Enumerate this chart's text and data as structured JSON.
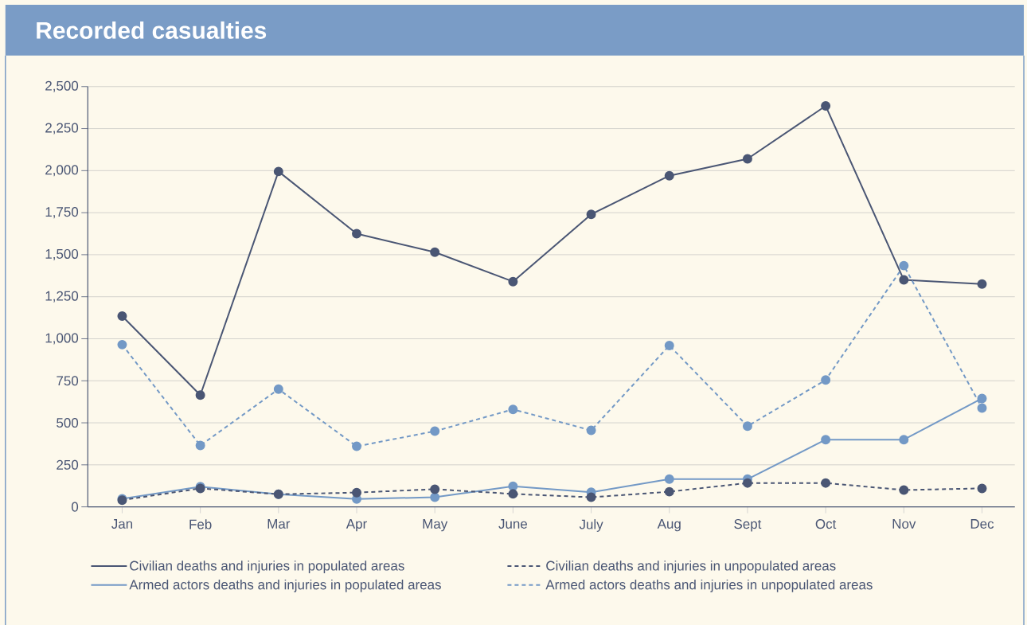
{
  "chart_data": {
    "type": "line",
    "title": "Recorded casualties",
    "categories": [
      "Jan",
      "Feb",
      "Mar",
      "Apr",
      "May",
      "June",
      "July",
      "Aug",
      "Sept",
      "Oct",
      "Nov",
      "Dec"
    ],
    "series": [
      {
        "name": "Civilian deaths and injuries in populated areas",
        "color": "#4a5674",
        "line_style": "solid",
        "values": [
          1135,
          665,
          1995,
          1625,
          1515,
          1340,
          1740,
          1970,
          2070,
          2385,
          1350,
          1325
        ]
      },
      {
        "name": "Civilian deaths and injuries in unpopulated areas",
        "color": "#4a5674",
        "line_style": "dashed",
        "values": [
          40,
          110,
          75,
          85,
          105,
          77,
          57,
          90,
          142,
          142,
          100,
          110
        ]
      },
      {
        "name": "Armed actors deaths and injuries in populated areas",
        "color": "#7399c6",
        "line_style": "solid",
        "values": [
          48,
          120,
          75,
          47,
          57,
          123,
          87,
          165,
          165,
          400,
          400,
          645
        ]
      },
      {
        "name": "Armed actors deaths and injuries in unpopulated areas",
        "color": "#7399c6",
        "line_style": "dashed",
        "values": [
          965,
          365,
          700,
          360,
          450,
          580,
          455,
          960,
          480,
          755,
          1435,
          588
        ]
      }
    ],
    "ylim": [
      0,
      2500
    ],
    "yticks": [
      0,
      250,
      500,
      750,
      {
        "value": 1000,
        "label": "1,000"
      },
      {
        "value": 1250,
        "label": "1,250"
      },
      {
        "value": 1500,
        "label": "1,500"
      },
      {
        "value": 1750,
        "label": "1,750"
      },
      {
        "value": 2000,
        "label": "2,000"
      },
      {
        "value": 2250,
        "label": "2,250"
      },
      {
        "value": 2500,
        "label": "2,500"
      }
    ],
    "grid": "y",
    "marker": "circle",
    "legend": "bottom"
  }
}
